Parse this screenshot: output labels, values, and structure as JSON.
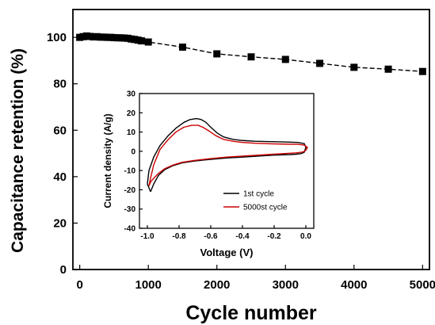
{
  "chart_data": [
    {
      "type": "line",
      "xlabel": "Cycle number",
      "ylabel": "Capacitance retention (%)",
      "xlim": [
        -100,
        5100
      ],
      "ylim": [
        0,
        112
      ],
      "xticks": [
        "0",
        "1000",
        "2000",
        "3000",
        "4000",
        "5000"
      ],
      "yticks": [
        "0",
        "20",
        "40",
        "60",
        "80",
        "100"
      ],
      "marker": "square",
      "series": [
        {
          "x": [
            0,
            50,
            100,
            150,
            200,
            250,
            300,
            350,
            400,
            450,
            500,
            550,
            600,
            650,
            700,
            750,
            800,
            850,
            900,
            1000,
            1500,
            2000,
            2500,
            3000,
            3500,
            4000,
            4500,
            5000
          ],
          "values": [
            100,
            100.3,
            100.6,
            100.4,
            100.2,
            100.3,
            100.1,
            100.1,
            100.0,
            100.0,
            99.9,
            99.8,
            99.8,
            99.7,
            99.6,
            99.3,
            99.1,
            98.8,
            98.5,
            98.0,
            95.8,
            92.9,
            91.6,
            90.5,
            88.8,
            87.1,
            86.3,
            85.3
          ],
          "color": "#000000"
        }
      ]
    },
    {
      "type": "line",
      "xlabel": "Voltage (V)",
      "ylabel": "Current density (A/g)",
      "xlim": [
        -1.05,
        0.05
      ],
      "ylim": [
        -40,
        30
      ],
      "xticks": [
        "-1.0",
        "-0.8",
        "-0.6",
        "-0.4",
        "-0.2",
        "0.0"
      ],
      "yticks": [
        "-40",
        "-30",
        "-20",
        "-10",
        "0",
        "10",
        "20",
        "30"
      ],
      "legend": "center-right",
      "series": [
        {
          "name": "1st cycle",
          "color": "#000000",
          "x": [
            -0.98,
            -1.0,
            -0.99,
            -0.96,
            -0.92,
            -0.87,
            -0.82,
            -0.77,
            -0.73,
            -0.69,
            -0.66,
            -0.63,
            -0.6,
            -0.56,
            -0.52,
            -0.46,
            -0.4,
            -0.32,
            -0.22,
            -0.12,
            -0.05,
            -0.01,
            0.0,
            -0.01,
            -0.03,
            -0.06,
            -0.1,
            -0.2,
            -0.3,
            -0.4,
            -0.5,
            -0.6,
            -0.7,
            -0.78,
            -0.84,
            -0.89,
            -0.93,
            -0.96,
            -0.98
          ],
          "values": [
            -21,
            -17,
            -10,
            -3,
            3,
            8,
            12,
            15,
            16.5,
            17,
            16.5,
            15,
            12.5,
            9.5,
            7.5,
            6.2,
            5.6,
            5.2,
            5.0,
            4.8,
            4.6,
            4.0,
            2.0,
            -0.5,
            -1.2,
            -1.5,
            -1.7,
            -2.0,
            -2.5,
            -3.0,
            -3.5,
            -4.2,
            -5.0,
            -6.0,
            -7.5,
            -9.5,
            -12.5,
            -17,
            -21
          ]
        },
        {
          "name": "5000st cycle",
          "color": "#cc0000",
          "x": [
            -0.99,
            -0.98,
            -0.96,
            -0.92,
            -0.87,
            -0.82,
            -0.77,
            -0.72,
            -0.68,
            -0.65,
            -0.61,
            -0.57,
            -0.52,
            -0.46,
            -0.4,
            -0.32,
            -0.22,
            -0.12,
            -0.05,
            -0.01,
            0.01,
            0.0,
            -0.02,
            -0.06,
            -0.1,
            -0.2,
            -0.3,
            -0.4,
            -0.5,
            -0.6,
            -0.7,
            -0.78,
            -0.84,
            -0.89,
            -0.93,
            -0.96,
            -0.98,
            -0.99
          ],
          "values": [
            -18,
            -14,
            -7,
            1,
            6,
            10,
            12.5,
            13.5,
            13.5,
            12.5,
            10.5,
            8.2,
            6.2,
            5.2,
            4.6,
            4.2,
            3.9,
            3.7,
            3.6,
            3.2,
            2.0,
            0.5,
            -0.4,
            -0.8,
            -1.0,
            -1.5,
            -2.0,
            -2.5,
            -3.0,
            -3.8,
            -4.7,
            -5.7,
            -7.2,
            -9.0,
            -11.5,
            -14,
            -16,
            -18
          ]
        }
      ]
    }
  ]
}
